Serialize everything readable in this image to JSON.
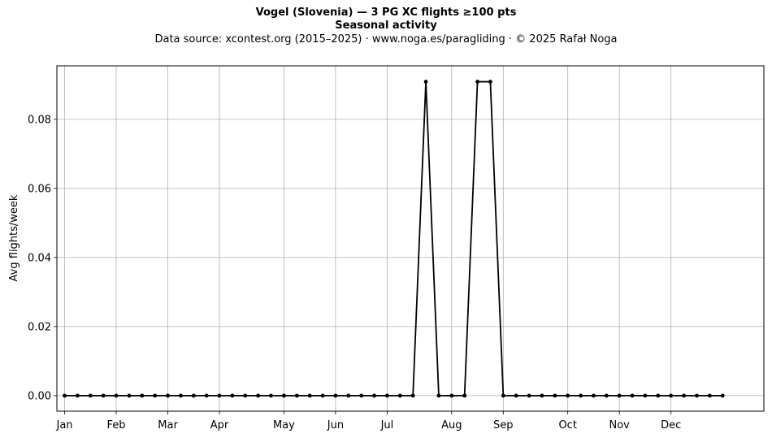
{
  "chart_data": {
    "type": "line",
    "title": "Vogel (Slovenia)  —  3 PG XC flights ≥100 pts",
    "subtitle": "Seasonal activity",
    "source_line": "Data source: xcontest.org (2015–2025)  ·  www.noga.es/paragliding  ·  © 2025 Rafał Noga",
    "xlabel": "",
    "ylabel": "Avg flights/week",
    "grid": true,
    "ylim": [
      -0.0045,
      0.0955
    ],
    "yticks": [
      0.0,
      0.02,
      0.04,
      0.06,
      0.08
    ],
    "ytick_labels": [
      "0.00",
      "0.02",
      "0.04",
      "0.06",
      "0.08"
    ],
    "xlim": [
      -0.6,
      54.2
    ],
    "xticks": [
      0,
      4,
      8,
      12,
      17,
      21,
      25,
      30,
      34,
      39,
      43,
      47
    ],
    "xtick_labels": [
      "Jan",
      "Feb",
      "Mar",
      "Apr",
      "May",
      "Jun",
      "Jul",
      "Aug",
      "Sep",
      "Oct",
      "Nov",
      "Dec"
    ],
    "line_color": "#000000",
    "x": [
      0,
      1,
      2,
      3,
      4,
      5,
      6,
      7,
      8,
      9,
      10,
      11,
      12,
      13,
      14,
      15,
      16,
      17,
      18,
      19,
      20,
      21,
      22,
      23,
      24,
      25,
      26,
      27,
      28,
      29,
      30,
      31,
      32,
      33,
      34,
      35,
      36,
      37,
      38,
      39,
      40,
      41,
      42,
      43,
      44,
      45,
      46,
      47,
      48,
      49,
      50,
      51
    ],
    "values": [
      0,
      0,
      0,
      0,
      0,
      0,
      0,
      0,
      0,
      0,
      0,
      0,
      0,
      0,
      0,
      0,
      0,
      0,
      0,
      0,
      0,
      0,
      0,
      0,
      0,
      0,
      0,
      0,
      0.0909,
      0,
      0,
      0,
      0.0909,
      0.0909,
      0,
      0,
      0,
      0,
      0,
      0,
      0,
      0,
      0,
      0,
      0,
      0,
      0,
      0,
      0,
      0,
      0,
      0
    ]
  }
}
